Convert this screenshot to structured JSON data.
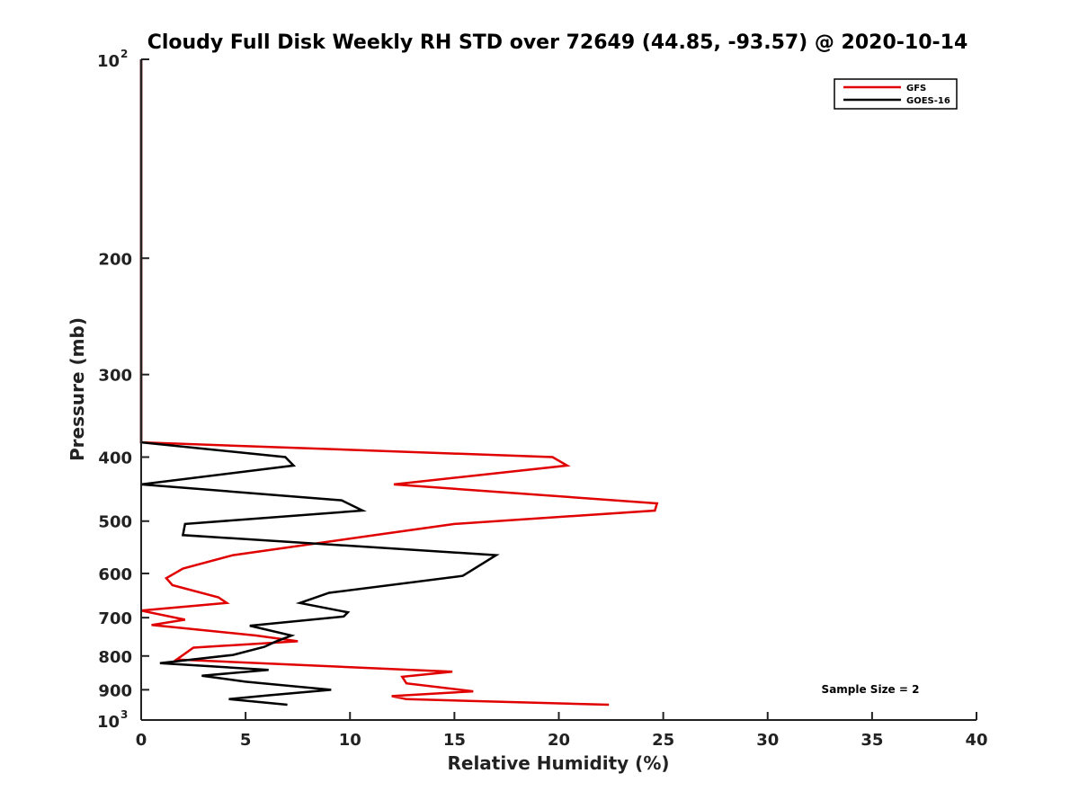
{
  "chart_data": {
    "type": "line",
    "title": "Cloudy Full Disk Weekly RH STD over 72649 (44.85, -93.57) @ 2020-10-14",
    "xlabel": "Relative Humidity (%)",
    "ylabel": "Pressure (mb)",
    "xlim": [
      0,
      40
    ],
    "ylim": [
      100,
      1000
    ],
    "y_scale": "log",
    "y_reversed": true,
    "x_ticks": [
      "0",
      "5",
      "10",
      "15",
      "20",
      "25",
      "30",
      "35",
      "40"
    ],
    "y_ticks": [
      {
        "value": 100,
        "base": "10",
        "exp": "2"
      },
      {
        "value": 200,
        "label": "200"
      },
      {
        "value": 300,
        "label": "300"
      },
      {
        "value": 400,
        "label": "400"
      },
      {
        "value": 500,
        "label": "500"
      },
      {
        "value": 600,
        "label": "600"
      },
      {
        "value": 700,
        "label": "700"
      },
      {
        "value": 800,
        "label": "800"
      },
      {
        "value": 900,
        "label": "900"
      },
      {
        "value": 1000,
        "base": "10",
        "exp": "3"
      }
    ],
    "grid": false,
    "legend_position": "top-right",
    "annotation": "Sample Size = 2",
    "series": [
      {
        "name": "GFS",
        "color": "#e00000",
        "points": [
          [
            0,
            100
          ],
          [
            0,
            200
          ],
          [
            0,
            300
          ],
          [
            0,
            380
          ],
          [
            19.7,
            400
          ],
          [
            20.4,
            412
          ],
          [
            12.1,
            440
          ],
          [
            24.7,
            470
          ],
          [
            24.6,
            482
          ],
          [
            15.0,
            505
          ],
          [
            11.2,
            525
          ],
          [
            4.4,
            563
          ],
          [
            2.0,
            590
          ],
          [
            1.2,
            610
          ],
          [
            1.5,
            625
          ],
          [
            3.7,
            652
          ],
          [
            4.1,
            665
          ],
          [
            0,
            683
          ],
          [
            2.1,
            705
          ],
          [
            0.5,
            718
          ],
          [
            5.5,
            745
          ],
          [
            7.5,
            760
          ],
          [
            2.5,
            777
          ],
          [
            1.7,
            810
          ],
          [
            14.9,
            845
          ],
          [
            12.5,
            860
          ],
          [
            12.7,
            880
          ],
          [
            15.9,
            905
          ],
          [
            12.0,
            920
          ],
          [
            12.7,
            930
          ],
          [
            22.4,
            948
          ]
        ]
      },
      {
        "name": "GOES-16",
        "color": "#000000",
        "points": [
          [
            0,
            100
          ],
          [
            0,
            200
          ],
          [
            0,
            300
          ],
          [
            0,
            380
          ],
          [
            6.9,
            400
          ],
          [
            7.3,
            412
          ],
          [
            0,
            440
          ],
          [
            9.6,
            465
          ],
          [
            10.6,
            482
          ],
          [
            2.1,
            505
          ],
          [
            2.0,
            525
          ],
          [
            17.0,
            563
          ],
          [
            15.4,
            605
          ],
          [
            9.0,
            642
          ],
          [
            7.6,
            665
          ],
          [
            9.9,
            687
          ],
          [
            9.7,
            697
          ],
          [
            5.2,
            720
          ],
          [
            7.2,
            745
          ],
          [
            6.4,
            762
          ],
          [
            5.9,
            775
          ],
          [
            4.4,
            797
          ],
          [
            0.9,
            820
          ],
          [
            6.1,
            840
          ],
          [
            2.9,
            857
          ],
          [
            5.0,
            875
          ],
          [
            9.1,
            900
          ],
          [
            6.0,
            918
          ],
          [
            4.2,
            930
          ],
          [
            7.0,
            948
          ]
        ]
      }
    ]
  }
}
